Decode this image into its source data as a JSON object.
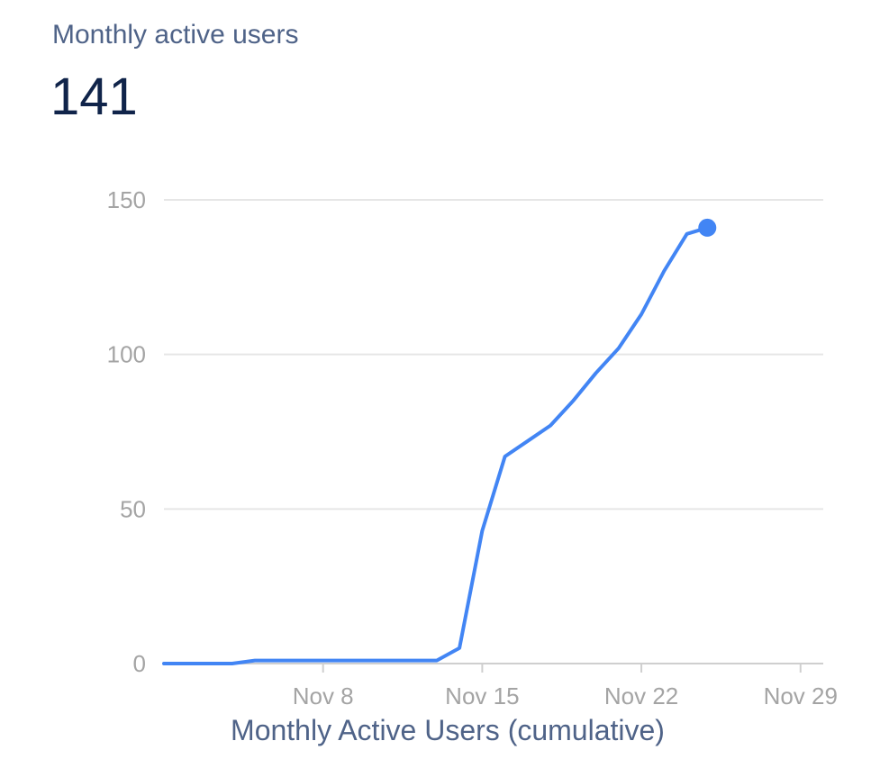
{
  "card": {
    "title": "Monthly active users",
    "value": "141"
  },
  "chart_data": {
    "type": "line",
    "title": "Monthly active users",
    "xlabel": "Monthly Active Users (cumulative)",
    "ylabel": "",
    "ylim": [
      0,
      150
    ],
    "yticks": [
      0,
      50,
      100,
      150
    ],
    "ytick_labels": [
      "0",
      "50",
      "100",
      "150"
    ],
    "xlim": [
      1,
      30
    ],
    "xticks": [
      8,
      15,
      22,
      29
    ],
    "xtick_labels": [
      "Nov 8",
      "Nov 15",
      "Nov 22",
      "Nov 29"
    ],
    "grid": true,
    "color": "#4285f4",
    "series": [
      {
        "name": "Monthly Active Users (cumulative)",
        "x": [
          1,
          2,
          3,
          4,
          5,
          6,
          7,
          8,
          9,
          10,
          11,
          12,
          13,
          14,
          15,
          16,
          17,
          18,
          19,
          20,
          21,
          22,
          23,
          24,
          24.9
        ],
        "values": [
          0,
          0,
          0,
          0,
          1,
          1,
          1,
          1,
          1,
          1,
          1,
          1,
          1,
          5,
          43,
          67,
          72,
          77,
          85,
          94,
          102,
          113,
          127,
          139,
          141
        ],
        "end_marker": true
      }
    ]
  }
}
